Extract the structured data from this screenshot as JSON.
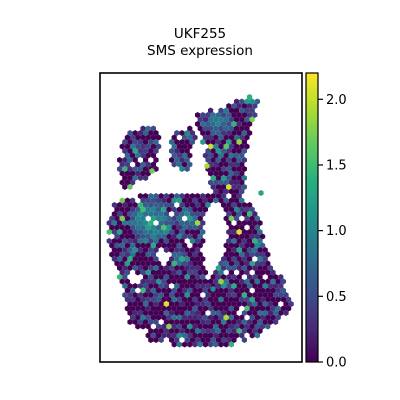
{
  "chart_data": {
    "type": "scatter",
    "title": "UKF255",
    "subtitle": "SMS expression",
    "xlabel": "",
    "ylabel": "",
    "grid": false,
    "axes_ticks_visible": false,
    "marker": "hexagon",
    "colormap": "viridis",
    "colorbar": {
      "vmin": 0.0,
      "vmax": 2.2,
      "ticks": [
        0.0,
        0.5,
        1.0,
        1.5,
        2.0
      ],
      "tick_labels": [
        "0.0",
        "0.5",
        "1.0",
        "1.5",
        "2.0"
      ]
    },
    "note": "Spatial spot map; each hexagon is a spot colored by SMS expression (mostly near 0, a dense cluster of 0.8–1.6 values on the left lobe, scattered high values up to ~2.1)."
  },
  "colors": {
    "background": "#ffffff",
    "frame": "#000000",
    "low": "#440154",
    "high": "#fde725"
  }
}
